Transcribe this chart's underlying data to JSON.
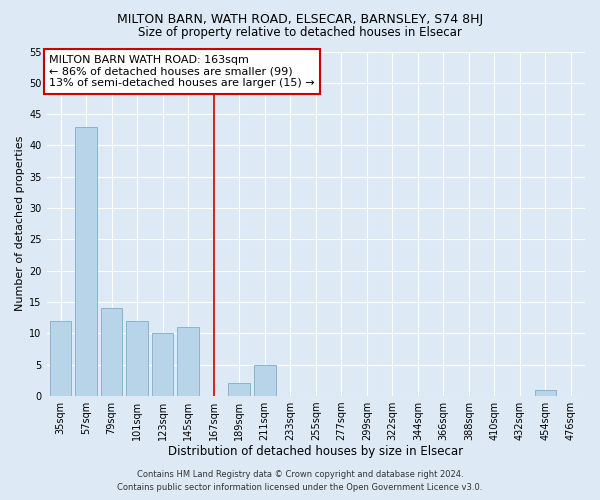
{
  "title": "MILTON BARN, WATH ROAD, ELSECAR, BARNSLEY, S74 8HJ",
  "subtitle": "Size of property relative to detached houses in Elsecar",
  "xlabel": "Distribution of detached houses by size in Elsecar",
  "ylabel": "Number of detached properties",
  "bar_labels": [
    "35sqm",
    "57sqm",
    "79sqm",
    "101sqm",
    "123sqm",
    "145sqm",
    "167sqm",
    "189sqm",
    "211sqm",
    "233sqm",
    "255sqm",
    "277sqm",
    "299sqm",
    "322sqm",
    "344sqm",
    "366sqm",
    "388sqm",
    "410sqm",
    "432sqm",
    "454sqm",
    "476sqm"
  ],
  "bar_values": [
    12,
    43,
    14,
    12,
    10,
    11,
    0,
    2,
    5,
    0,
    0,
    0,
    0,
    0,
    0,
    0,
    0,
    0,
    0,
    1,
    0
  ],
  "bar_color": "#b8d4e8",
  "bar_edge_color": "#8ab4cc",
  "ylim": [
    0,
    55
  ],
  "yticks": [
    0,
    5,
    10,
    15,
    20,
    25,
    30,
    35,
    40,
    45,
    50,
    55
  ],
  "vline_x_index": 6,
  "vline_color": "#cc0000",
  "annotation_title": "MILTON BARN WATH ROAD: 163sqm",
  "annotation_line1": "← 86% of detached houses are smaller (99)",
  "annotation_line2": "13% of semi-detached houses are larger (15) →",
  "annotation_box_color": "#ffffff",
  "annotation_box_edge": "#cc0000",
  "footer_line1": "Contains HM Land Registry data © Crown copyright and database right 2024.",
  "footer_line2": "Contains public sector information licensed under the Open Government Licence v3.0.",
  "bg_color": "#ddeaf5",
  "plot_bg_color": "#ddeaf5",
  "grid_color": "#ffffff",
  "title_fontsize": 9,
  "subtitle_fontsize": 8.5,
  "xlabel_fontsize": 8.5,
  "ylabel_fontsize": 8,
  "tick_fontsize": 7,
  "annotation_fontsize": 8,
  "footer_fontsize": 6
}
